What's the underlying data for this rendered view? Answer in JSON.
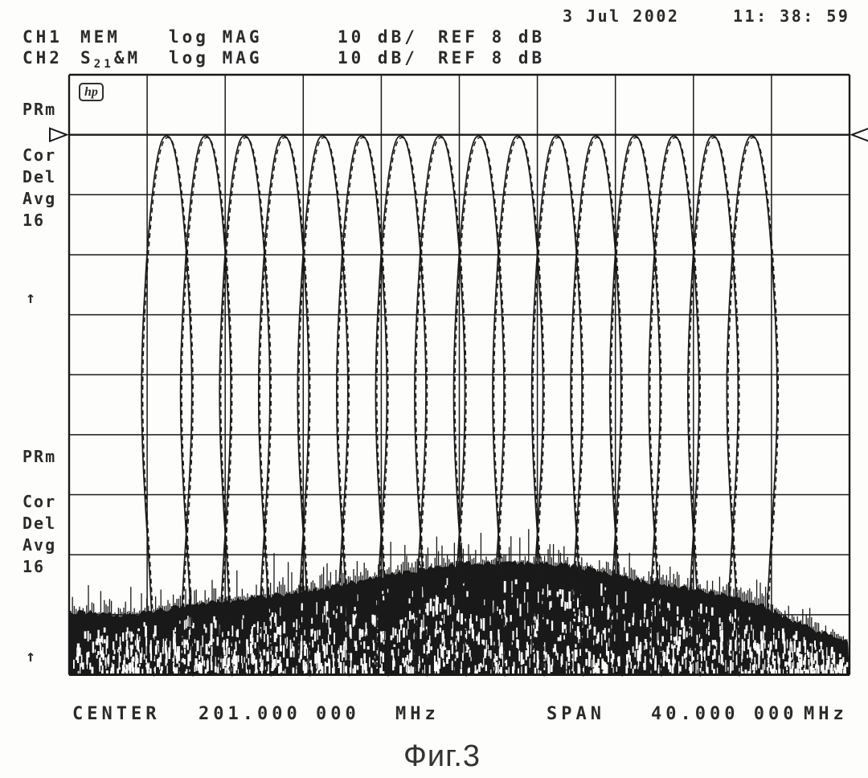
{
  "header": {
    "datetime": {
      "date": "3 Jul 2002",
      "time": "11: 38: 59"
    },
    "ch1": {
      "channel": "CH1",
      "trace": "MEM",
      "format": "log MAG",
      "scale": "10 dB/",
      "ref": "REF 8 dB"
    },
    "ch2": {
      "channel": "CH2",
      "s": "S",
      "s_sub": "21",
      "s_rest": "&M",
      "format": "log MAG",
      "scale": "10 dB/",
      "ref": "REF 8 dB"
    }
  },
  "left_panel": {
    "ch1_status": {
      "prm": "PRm",
      "cor": "Cor",
      "del": "Del",
      "avg": "Avg",
      "avg_count": "16",
      "arrow": "↑"
    },
    "ch2_status": {
      "prm": "PRm",
      "cor": "Cor",
      "del": "Del",
      "avg": "Avg",
      "avg_count": "16",
      "arrow": "↑"
    }
  },
  "logo": "hp",
  "footer": {
    "center_label": "CENTER",
    "center_value": "201.000 000",
    "center_unit": "MHz",
    "span_label": "SPAN",
    "span_value": "40.000 000",
    "span_unit": "MHz"
  },
  "caption": "Фиг.3",
  "colors": {
    "ink": "#1a1a1a",
    "noise": "#191919",
    "background": "#fdfdfc"
  },
  "chart_data": {
    "type": "line",
    "title": "16-channel filter bank frequency responses on HP network analyzer screen",
    "xlabel": "Frequency",
    "x_unit": "MHz",
    "x_range": [
      181,
      221
    ],
    "center_mhz": 201.0,
    "span_mhz": 40.0,
    "y_unit": "dB",
    "ref_level_db": 8,
    "scale_db_per_div": 10,
    "y_range": [
      -82,
      18
    ],
    "grid": {
      "x_divisions": 10,
      "y_divisions": 10,
      "legend": "none"
    },
    "series": [
      {
        "name": "CH1 MEM",
        "style": "dashed",
        "description": "memory trace: 16 overlaid bandpass channel responses"
      },
      {
        "name": "CH2 S21&M",
        "style": "solid",
        "description": "measured S21 with memory: same 16 bandpass responses plus noise floor"
      }
    ],
    "channels_mhz": [
      186,
      188,
      190,
      192,
      194,
      196,
      198,
      200,
      202,
      204,
      206,
      208,
      210,
      212,
      214,
      216
    ],
    "channel_peak_db": 8,
    "adjacent_crossover_db": -11.5,
    "noise_envelope": [
      [
        181,
        -71.5
      ],
      [
        184,
        -72.0
      ],
      [
        188,
        -70.0
      ],
      [
        192,
        -68.5
      ],
      [
        195,
        -67.0
      ],
      [
        197,
        -65.5
      ],
      [
        199,
        -64.5
      ],
      [
        201,
        -63.5
      ],
      [
        204,
        -63.3
      ],
      [
        206,
        -63.5
      ],
      [
        208,
        -64.5
      ],
      [
        210,
        -66.0
      ],
      [
        212.5,
        -67.5
      ],
      [
        214.5,
        -68.5
      ],
      [
        216.5,
        -70.5
      ],
      [
        218.5,
        -73.5
      ],
      [
        220,
        -75.5
      ],
      [
        221,
        -76.5
      ]
    ],
    "noise_floor_bottom_db": -82
  }
}
